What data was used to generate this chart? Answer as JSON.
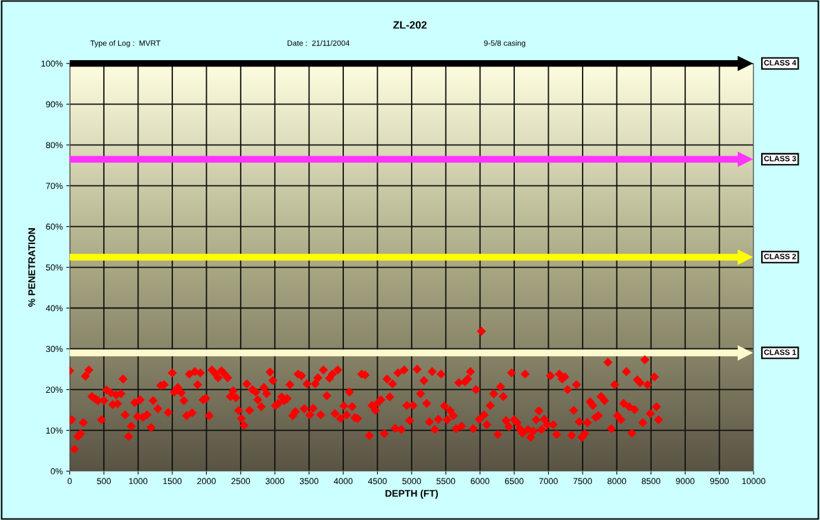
{
  "chart_data": {
    "type": "scatter",
    "title": "ZL-202",
    "annotations": [
      "Type of Log :  MVRT",
      "Date :  21/11/2004",
      "9-5/8 casing"
    ],
    "xlabel": "DEPTH (FT)",
    "ylabel": "% PENETRATION",
    "series": [
      {
        "color": "#ff0000",
        "x": [
          0,
          30,
          70,
          120,
          160,
          200,
          230,
          280,
          325,
          375,
          415,
          465,
          500,
          540,
          600,
          630,
          680,
          700,
          750,
          780,
          810,
          860,
          900,
          950,
          990,
          1030,
          1070,
          1130,
          1190,
          1220,
          1290,
          1330,
          1380,
          1440,
          1500,
          1530,
          1580,
          1630,
          1670,
          1710,
          1750,
          1790,
          1830,
          1870,
          1910,
          1950,
          1990,
          2040,
          2080,
          2130,
          2170,
          2220,
          2260,
          2310,
          2350,
          2390,
          2430,
          2470,
          2510,
          2550,
          2590,
          2630,
          2670,
          2720,
          2750,
          2800,
          2840,
          2880,
          2930,
          2970,
          3010,
          3050,
          3100,
          3140,
          3180,
          3220,
          3260,
          3300,
          3340,
          3390,
          3430,
          3470,
          3510,
          3560,
          3590,
          3630,
          3670,
          3710,
          3760,
          3800,
          3840,
          3880,
          3920,
          3960,
          4010,
          4050,
          4090,
          4130,
          4170,
          4210,
          4270,
          4320,
          4380,
          4420,
          4470,
          4510,
          4550,
          4600,
          4640,
          4680,
          4720,
          4760,
          4800,
          4850,
          4890,
          4930,
          4970,
          5020,
          5080,
          5130,
          5180,
          5220,
          5260,
          5300,
          5340,
          5390,
          5430,
          5480,
          5520,
          5560,
          5610,
          5650,
          5690,
          5730,
          5780,
          5820,
          5860,
          5900,
          5940,
          5990,
          6020,
          6060,
          6100,
          6150,
          6200,
          6260,
          6300,
          6340,
          6380,
          6420,
          6460,
          6500,
          6540,
          6580,
          6620,
          6660,
          6700,
          6740,
          6780,
          6820,
          6860,
          6900,
          6940,
          6980,
          7030,
          7070,
          7120,
          7160,
          7200,
          7240,
          7280,
          7340,
          7370,
          7410,
          7450,
          7490,
          7530,
          7570,
          7610,
          7650,
          7690,
          7730,
          7770,
          7820,
          7870,
          7920,
          7970,
          8010,
          8060,
          8100,
          8140,
          8180,
          8220,
          8260,
          8300,
          8340,
          8380,
          8410,
          8450,
          8490,
          8550,
          8580,
          8610
        ],
        "values": [
          24.6,
          12.6,
          5.4,
          8.5,
          9.2,
          11.9,
          23.3,
          24.8,
          18.3,
          17.7,
          17.3,
          12.6,
          17.3,
          19.9,
          19.2,
          16.3,
          18.7,
          16.5,
          19,
          22.6,
          13.8,
          8.5,
          11,
          16.8,
          13.4,
          17.5,
          13.2,
          13.8,
          10.7,
          17.3,
          15.3,
          21,
          21.2,
          14.4,
          24.1,
          19.4,
          20.5,
          19.2,
          17.3,
          13.6,
          23.8,
          14.3,
          24.4,
          21.2,
          24.1,
          17.5,
          17.8,
          13.6,
          24.8,
          23.9,
          22.9,
          24.6,
          23.9,
          22.9,
          18.3,
          19.7,
          18,
          14.9,
          12.9,
          11.2,
          21.4,
          14.9,
          20,
          19.4,
          17.5,
          15.8,
          20.5,
          19,
          24.3,
          22.2,
          16.1,
          16.6,
          18.2,
          17.3,
          17.8,
          21.2,
          13.6,
          14.6,
          23.8,
          23.4,
          15.3,
          21.4,
          13.8,
          15.4,
          21.4,
          22.9,
          13.8,
          24.8,
          18.5,
          22.8,
          23.8,
          14.1,
          24.8,
          12.9,
          16,
          13.8,
          19.4,
          15.8,
          13.1,
          12.9,
          23.8,
          23.6,
          8.7,
          16.1,
          14.9,
          16.8,
          17.5,
          9.2,
          22.6,
          18.2,
          21.4,
          10.5,
          24.1,
          10.2,
          24.8,
          16.1,
          12.4,
          16.1,
          25,
          19,
          22.2,
          16.6,
          12.1,
          24.4,
          10.2,
          12.7,
          23.8,
          16,
          12.6,
          14.9,
          13.6,
          10.4,
          21.7,
          11,
          21.9,
          22.6,
          24.4,
          10.4,
          20,
          12.7,
          34.3,
          13.8,
          11.4,
          16.1,
          19,
          9,
          20.7,
          18.3,
          12.4,
          10.9,
          24.1,
          12.6,
          11.9,
          10.4,
          9.3,
          23.8,
          10.2,
          8.3,
          9.8,
          12.6,
          14.8,
          10.2,
          12.7,
          11.4,
          23.4,
          11.4,
          9,
          23.8,
          22.6,
          23.1,
          20,
          8.8,
          14.9,
          21.2,
          12.1,
          8.3,
          9.2,
          11.9,
          17,
          16.1,
          13.2,
          13.6,
          18.3,
          17.3,
          26.7,
          10.4,
          21.2,
          13.6,
          12.6,
          16.6,
          24.4,
          15.8,
          9.3,
          15.1,
          22.4,
          21.7,
          11.9,
          27.3,
          21.2,
          14.1,
          23.1,
          15.8,
          12.6
        ]
      }
    ],
    "marker": "diamond",
    "grid": true,
    "legend": false,
    "xlim": [
      0,
      10000
    ],
    "xticks": [
      0,
      500,
      1000,
      1500,
      2000,
      2500,
      3000,
      3500,
      4000,
      4500,
      5000,
      5500,
      6000,
      6500,
      7000,
      7500,
      8000,
      8500,
      9000,
      9500,
      10000
    ],
    "ylim": [
      0,
      100
    ],
    "yticks": [
      {
        "value": 0,
        "label": "0%"
      },
      {
        "value": 10,
        "label": "10%"
      },
      {
        "value": 20,
        "label": "20%"
      },
      {
        "value": 30,
        "label": "30%"
      },
      {
        "value": 40,
        "label": "40%"
      },
      {
        "value": 50,
        "label": "50%"
      },
      {
        "value": 60,
        "label": "60%"
      },
      {
        "value": 70,
        "label": "70%"
      },
      {
        "value": 80,
        "label": "80%"
      },
      {
        "value": 90,
        "label": "90%"
      },
      {
        "value": 100,
        "label": "100%"
      }
    ],
    "ref_lines": [
      {
        "axis": "y",
        "value": 100,
        "label": "CLASS 4",
        "color": "#000000"
      },
      {
        "axis": "y",
        "value": 76.5,
        "label": "CLASS 3",
        "color": "#ff33ff"
      },
      {
        "axis": "y",
        "value": 52.5,
        "label": "CLASS 2",
        "color": "#ffff00"
      },
      {
        "axis": "y",
        "value": 29,
        "label": "CLASS 1",
        "color": "#fffacd"
      }
    ]
  }
}
